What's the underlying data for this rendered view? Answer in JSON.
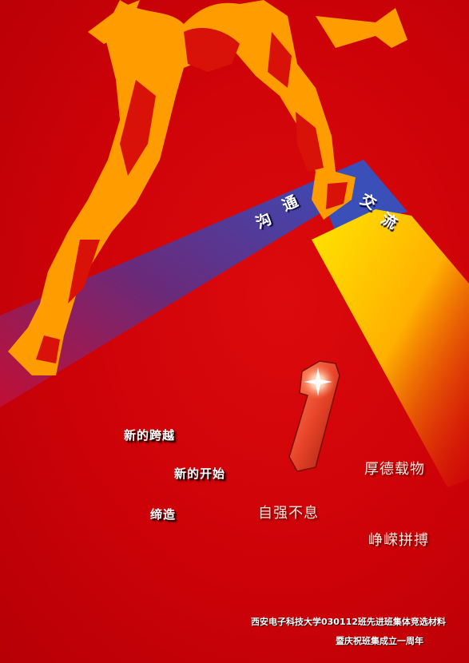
{
  "band": {
    "chars": [
      "沟",
      "通",
      "交",
      "流"
    ]
  },
  "badge": {
    "text": "1"
  },
  "slogans": [
    "新的跨越",
    "新的开始",
    "缔造"
  ],
  "mottos": [
    "厚德载物",
    "自强不息",
    "峥嵘拼搏"
  ],
  "footer": {
    "line1": "西安电子科技大学030112班先进班集体竞选材料",
    "line2": "暨庆祝班集成立一周年"
  },
  "colors": {
    "background": "#c90006",
    "runner": "#ff9a00",
    "band_blue": "#3a4fb8",
    "band_yellow": "#ffd800"
  }
}
